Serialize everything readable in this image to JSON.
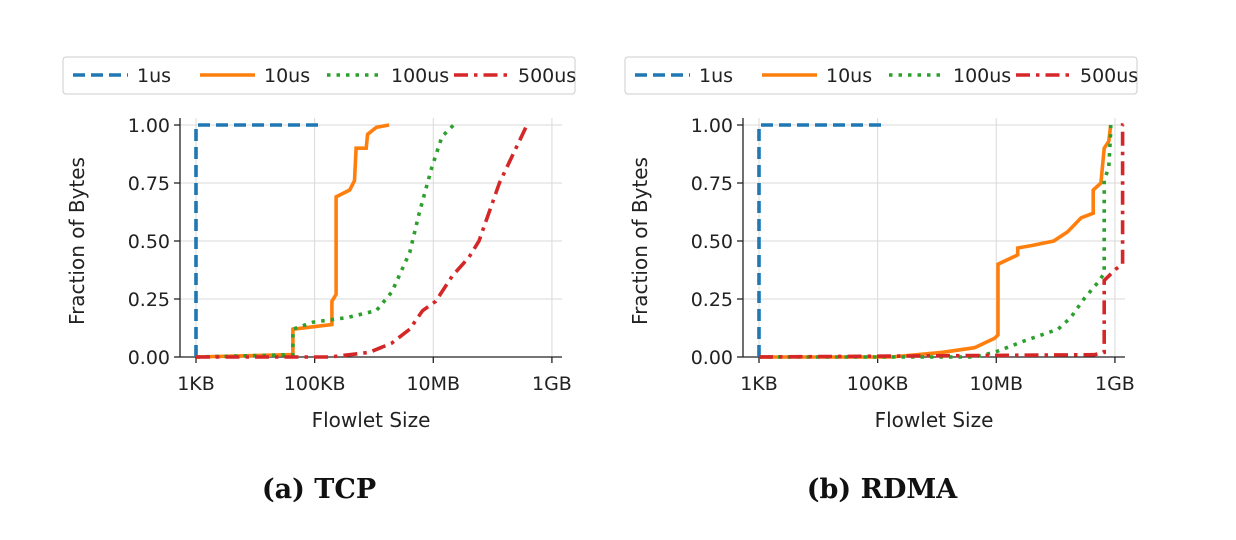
{
  "colors": {
    "1us": "#1f77b4",
    "10us": "#ff7f0e",
    "100us": "#2ca02c",
    "500us": "#d62728"
  },
  "chart_data": [
    {
      "type": "line",
      "caption": "(a) TCP",
      "xlabel": "Flowlet Size",
      "ylabel": "Fraction of Bytes",
      "xscale": "log",
      "xticks": [
        {
          "value": 1000.0,
          "label": "1KB"
        },
        {
          "value": 100000.0,
          "label": "100KB"
        },
        {
          "value": 10000000.0,
          "label": "10MB"
        },
        {
          "value": 1000000000.0,
          "label": "1GB"
        }
      ],
      "yticks": [
        {
          "value": 0,
          "label": "0.00"
        },
        {
          "value": 0.25,
          "label": "0.25"
        },
        {
          "value": 0.5,
          "label": "0.50"
        },
        {
          "value": 0.75,
          "label": "0.75"
        },
        {
          "value": 1,
          "label": "1.00"
        }
      ],
      "ylim": [
        0,
        1
      ],
      "grid": true,
      "legend": "top",
      "series": [
        {
          "name": "1us",
          "style": "dashed",
          "points": [
            [
              1000.0,
              0
            ],
            [
              1000.0,
              1
            ],
            [
              130000.0,
              1
            ]
          ]
        },
        {
          "name": "10us",
          "style": "solid",
          "points": [
            [
              1000.0,
              0
            ],
            [
              38000.0,
              0.01
            ],
            [
              43000.0,
              0.01
            ],
            [
              43000.0,
              0.12
            ],
            [
              93000.0,
              0.13
            ],
            [
              195000.0,
              0.14
            ],
            [
              195000.0,
              0.24
            ],
            [
              230000.0,
              0.27
            ],
            [
              230000.0,
              0.69
            ],
            [
              390000.0,
              0.72
            ],
            [
              470000.0,
              0.76
            ],
            [
              500000.0,
              0.9
            ],
            [
              740000.0,
              0.9
            ],
            [
              780000.0,
              0.96
            ],
            [
              1100000.0,
              0.99
            ],
            [
              1800000.0,
              1.0
            ]
          ]
        },
        {
          "name": "100us",
          "style": "dotted",
          "points": [
            [
              1000.0,
              0
            ],
            [
              43000.0,
              0.01
            ],
            [
              43000.0,
              0.12
            ],
            [
              93000.0,
              0.15
            ],
            [
              350000.0,
              0.17
            ],
            [
              1100000.0,
              0.2
            ],
            [
              2000000.0,
              0.28
            ],
            [
              4000000.0,
              0.45
            ],
            [
              5800000.0,
              0.62
            ],
            [
              9500000.0,
              0.82
            ],
            [
              14000000.0,
              0.95
            ],
            [
              22000000.0,
              1.0
            ]
          ]
        },
        {
          "name": "500us",
          "style": "dashdot",
          "points": [
            [
              1000.0,
              0
            ],
            [
              180000.0,
              0
            ],
            [
              830000.0,
              0.02
            ],
            [
              2000000.0,
              0.06
            ],
            [
              4000000.0,
              0.12
            ],
            [
              6600000.0,
              0.2
            ],
            [
              11000000.0,
              0.24
            ],
            [
              21000000.0,
              0.35
            ],
            [
              40000000.0,
              0.43
            ],
            [
              59000000.0,
              0.5
            ],
            [
              130000000.0,
              0.75
            ],
            [
              380000000.0,
              1.0
            ]
          ]
        }
      ]
    },
    {
      "type": "line",
      "caption": "(b) RDMA",
      "xlabel": "Flowlet Size",
      "ylabel": "Fraction of Bytes",
      "xscale": "log",
      "xticks": [
        {
          "value": 1000.0,
          "label": "1KB"
        },
        {
          "value": 100000.0,
          "label": "100KB"
        },
        {
          "value": 10000000.0,
          "label": "10MB"
        },
        {
          "value": 1000000000.0,
          "label": "1GB"
        }
      ],
      "yticks": [
        {
          "value": 0,
          "label": "0.00"
        },
        {
          "value": 0.25,
          "label": "0.25"
        },
        {
          "value": 0.5,
          "label": "0.50"
        },
        {
          "value": 0.75,
          "label": "0.75"
        },
        {
          "value": 1,
          "label": "1.00"
        }
      ],
      "ylim": [
        0,
        1
      ],
      "grid": true,
      "legend": "top",
      "series": [
        {
          "name": "1us",
          "style": "dashed",
          "points": [
            [
              1000.0,
              0
            ],
            [
              1000.0,
              1
            ],
            [
              130000.0,
              1
            ]
          ]
        },
        {
          "name": "10us",
          "style": "solid",
          "points": [
            [
              1000.0,
              0
            ],
            [
              170000.0,
              0
            ],
            [
              1200000.0,
              0.02
            ],
            [
              4300000.0,
              0.04
            ],
            [
              9300000.0,
              0.08
            ],
            [
              10700000.0,
              0.095
            ],
            [
              10700000.0,
              0.4
            ],
            [
              23000000.0,
              0.44
            ],
            [
              23000000.0,
              0.47
            ],
            [
              39000000.0,
              0.48
            ],
            [
              93000000.0,
              0.5
            ],
            [
              160000000.0,
              0.54
            ],
            [
              270000000.0,
              0.6
            ],
            [
              430000000.0,
              0.62
            ],
            [
              430000000.0,
              0.72
            ],
            [
              580000000.0,
              0.75
            ],
            [
              660000000.0,
              0.9
            ],
            [
              790000000.0,
              0.93
            ],
            [
              850000000.0,
              1.0
            ]
          ]
        },
        {
          "name": "100us",
          "style": "dotted",
          "points": [
            [
              1000.0,
              0
            ],
            [
              4300000.0,
              0
            ],
            [
              9300000.0,
              0.02
            ],
            [
              30000000.0,
              0.07
            ],
            [
              110000000.0,
              0.12
            ],
            [
              180000000.0,
              0.17
            ],
            [
              300000000.0,
              0.25
            ],
            [
              510000000.0,
              0.32
            ],
            [
              660000000.0,
              0.36
            ],
            [
              660000000.0,
              0.76
            ],
            [
              790000000.0,
              0.82
            ],
            [
              850000000.0,
              0.97
            ],
            [
              850000000.0,
              1.0
            ]
          ]
        },
        {
          "name": "500us",
          "style": "dashdot",
          "points": [
            [
              1000.0,
              0
            ],
            [
              450000000.0,
              0.01
            ],
            [
              660000000.0,
              0.02
            ],
            [
              660000000.0,
              0.33
            ],
            [
              1050000000.0,
              0.38
            ],
            [
              1350000000.0,
              0.4
            ],
            [
              1350000000.0,
              1.0
            ],
            [
              1400000000.0,
              1.0
            ]
          ]
        }
      ]
    }
  ]
}
